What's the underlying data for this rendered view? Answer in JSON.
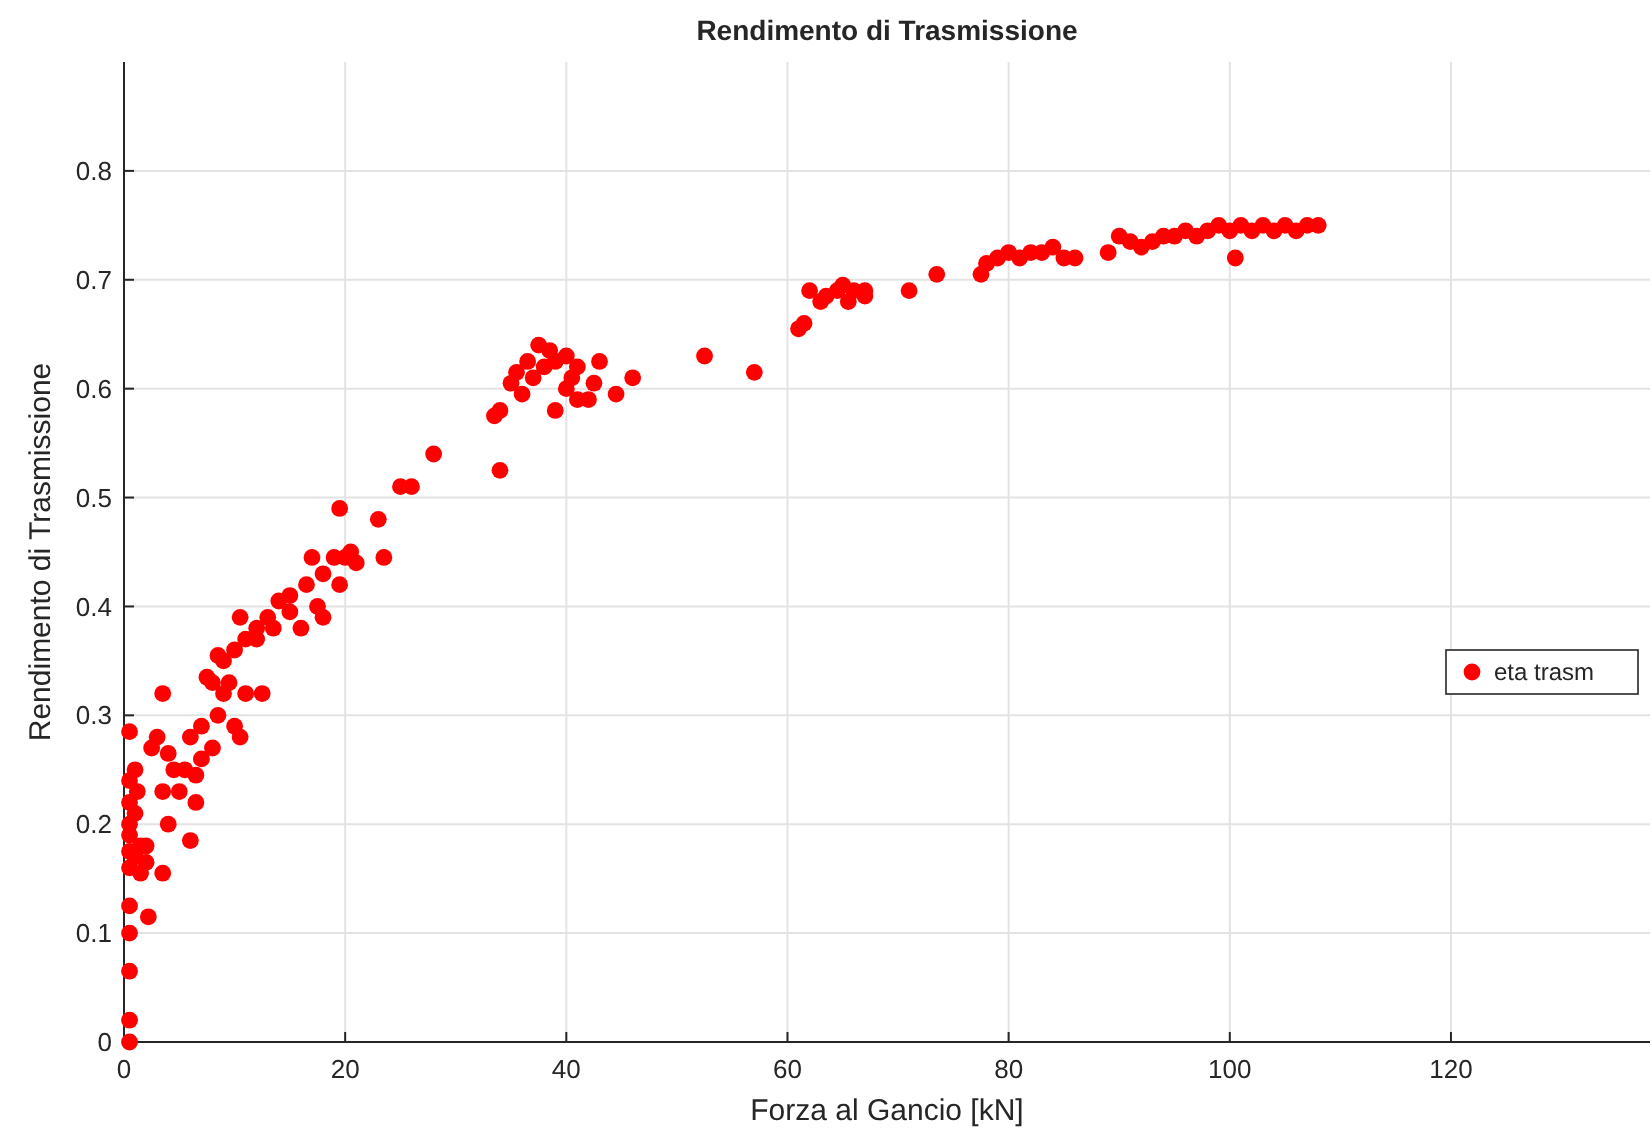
{
  "chart_data": {
    "type": "scatter",
    "title": "Rendimento di Trasmissione",
    "xlabel": "Forza al Gancio [kN]",
    "ylabel": "Rendimento di Trasmissione",
    "xlim": [
      0,
      138
    ],
    "xticks": [
      0,
      20,
      40,
      60,
      80,
      100,
      120
    ],
    "ylim": [
      0,
      0.9
    ],
    "yticks": [
      0,
      0.1,
      0.2,
      0.3,
      0.4,
      0.5,
      0.6,
      0.7,
      0.8
    ],
    "grid": true,
    "legend": "right",
    "marker": "circle",
    "series": [
      {
        "name": "eta trasm",
        "color": "#ff0000",
        "x": [
          0.5,
          0.5,
          0.5,
          0.5,
          0.5,
          0.5,
          0.5,
          0.5,
          0.5,
          0.5,
          0.5,
          0.5,
          1,
          1,
          1,
          1.2,
          1.5,
          1.5,
          2,
          2,
          2.2,
          2.5,
          3,
          3.5,
          3.5,
          3.5,
          4,
          4,
          4.5,
          5,
          5.5,
          6,
          6,
          6.5,
          6.5,
          7,
          7,
          7.5,
          8,
          8,
          8.5,
          8.5,
          9,
          9,
          9.5,
          10,
          10,
          10.5,
          10.5,
          11,
          11,
          12,
          12,
          12.5,
          13,
          13.5,
          14,
          15,
          15,
          16,
          16.5,
          17,
          17.5,
          18,
          18,
          19,
          19.5,
          19.5,
          20,
          20.5,
          21,
          23,
          23.5,
          25,
          26,
          28,
          33.5,
          34,
          34,
          35,
          35.5,
          36,
          36.5,
          37,
          37.5,
          38,
          38.5,
          39,
          39,
          40,
          40,
          40.5,
          41,
          41,
          42,
          42.5,
          43,
          44.5,
          46,
          52.5,
          57,
          61,
          61.5,
          62,
          63,
          63.5,
          64.5,
          65,
          65.5,
          66,
          67,
          67,
          71,
          73.5,
          77.5,
          78,
          79,
          80,
          81,
          82,
          83,
          84,
          85,
          86,
          89,
          90,
          91,
          92,
          93,
          94,
          95,
          96,
          97,
          98,
          99,
          100,
          100.5,
          101,
          102,
          103,
          104,
          105,
          106,
          107,
          108
        ],
        "values": [
          0,
          0.02,
          0.065,
          0.1,
          0.125,
          0.16,
          0.175,
          0.19,
          0.2,
          0.22,
          0.24,
          0.285,
          0.17,
          0.21,
          0.25,
          0.23,
          0.18,
          0.155,
          0.18,
          0.165,
          0.115,
          0.27,
          0.28,
          0.32,
          0.155,
          0.23,
          0.265,
          0.2,
          0.25,
          0.23,
          0.25,
          0.185,
          0.28,
          0.22,
          0.245,
          0.26,
          0.29,
          0.335,
          0.27,
          0.33,
          0.3,
          0.355,
          0.32,
          0.35,
          0.33,
          0.36,
          0.29,
          0.39,
          0.28,
          0.32,
          0.37,
          0.37,
          0.38,
          0.32,
          0.39,
          0.38,
          0.405,
          0.395,
          0.41,
          0.38,
          0.42,
          0.445,
          0.4,
          0.43,
          0.39,
          0.445,
          0.42,
          0.49,
          0.445,
          0.45,
          0.44,
          0.48,
          0.445,
          0.51,
          0.51,
          0.54,
          0.575,
          0.525,
          0.58,
          0.605,
          0.615,
          0.595,
          0.625,
          0.61,
          0.64,
          0.62,
          0.635,
          0.625,
          0.58,
          0.6,
          0.63,
          0.61,
          0.62,
          0.59,
          0.59,
          0.605,
          0.625,
          0.595,
          0.61,
          0.63,
          0.615,
          0.655,
          0.66,
          0.69,
          0.68,
          0.685,
          0.69,
          0.695,
          0.68,
          0.69,
          0.685,
          0.69,
          0.69,
          0.705,
          0.705,
          0.715,
          0.72,
          0.725,
          0.72,
          0.725,
          0.725,
          0.73,
          0.72,
          0.72,
          0.725,
          0.74,
          0.735,
          0.73,
          0.735,
          0.74,
          0.74,
          0.745,
          0.74,
          0.745,
          0.75,
          0.745,
          0.72,
          0.75,
          0.745,
          0.75,
          0.745,
          0.75,
          0.745,
          0.75,
          0.75
        ]
      }
    ]
  }
}
